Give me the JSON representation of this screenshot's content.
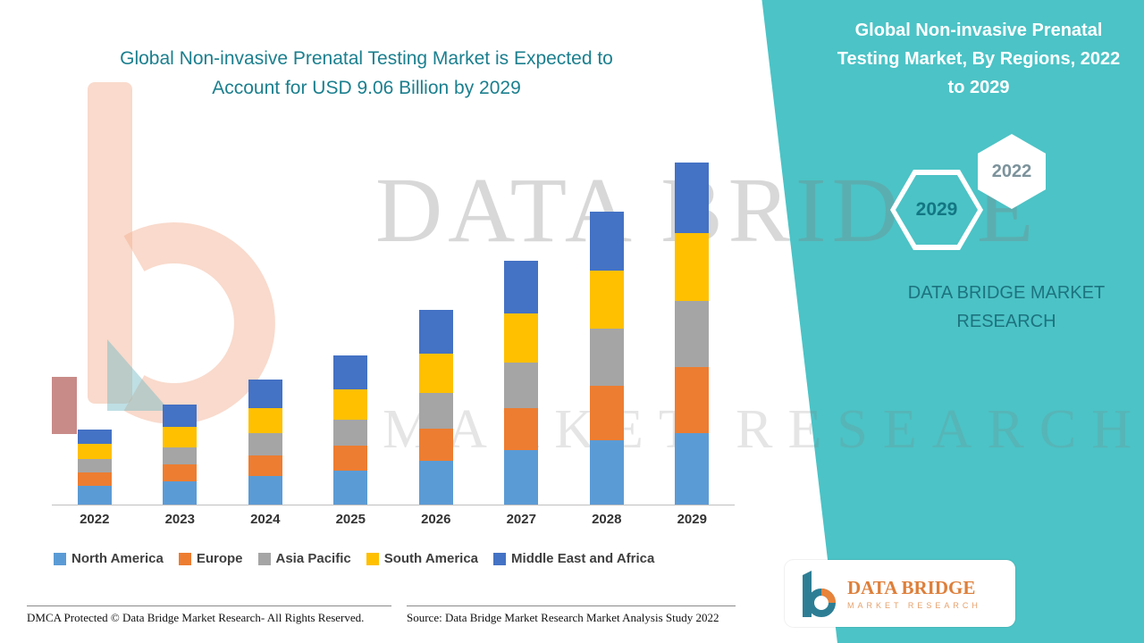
{
  "colors": {
    "teal_panel": "#4CC3C6",
    "teal_dark_text": "#1B7F8E",
    "brand_orange": "#DE7F3A",
    "axis_line": "#BFBFBF"
  },
  "header": {
    "title_line1": "Global Non-invasive Prenatal Testing Market is Expected to",
    "title_line2": "Account for USD 9.06 Billion by 2029",
    "right_title": "Global Non-invasive Prenatal Testing Market, By Regions, 2022 to 2029"
  },
  "side_panel": {
    "hex_back_label": "2029",
    "hex_front_label": "2022",
    "brand": "DATA BRIDGE MARKET RESEARCH"
  },
  "watermark": {
    "line1": "DATA BRIDGE",
    "line2": "MARKET RESEARCH"
  },
  "chart_data": {
    "type": "bar",
    "stacked": true,
    "title": "Global Non-invasive Prenatal Testing Market is Expected to Account for USD 9.06 Billion by 2029",
    "unit": "USD Billion",
    "categories": [
      "2022",
      "2023",
      "2024",
      "2025",
      "2026",
      "2027",
      "2028",
      "2029"
    ],
    "series": [
      {
        "name": "North America",
        "color": "#5B9BD5",
        "values": [
          0.5,
          0.62,
          0.75,
          0.9,
          1.15,
          1.45,
          1.7,
          1.9
        ]
      },
      {
        "name": "Europe",
        "color": "#ED7D31",
        "values": [
          0.35,
          0.45,
          0.55,
          0.65,
          0.85,
          1.1,
          1.45,
          1.75
        ]
      },
      {
        "name": "Asia Pacific",
        "color": "#A5A5A5",
        "values": [
          0.35,
          0.45,
          0.6,
          0.7,
          0.95,
          1.2,
          1.5,
          1.75
        ]
      },
      {
        "name": "South America",
        "color": "#FFC000",
        "values": [
          0.4,
          0.55,
          0.65,
          0.8,
          1.05,
          1.3,
          1.55,
          1.8
        ]
      },
      {
        "name": "Middle East and Africa",
        "color": "#4472C4",
        "values": [
          0.4,
          0.58,
          0.75,
          0.9,
          1.15,
          1.4,
          1.55,
          1.86
        ]
      }
    ],
    "totals": [
      2.0,
      2.65,
      3.3,
      3.95,
      5.15,
      6.45,
      7.75,
      9.06
    ],
    "ylim": [
      0,
      9.1
    ],
    "grid": false,
    "legend_position": "bottom"
  },
  "footer": {
    "dmca": "DMCA Protected © Data Bridge Market Research- All Rights Reserved.",
    "source": "Source: Data Bridge Market Research Market Analysis Study 2022"
  },
  "logo_card": {
    "title": "DATA BRIDGE",
    "subtitle": "MARKET RESEARCH"
  }
}
